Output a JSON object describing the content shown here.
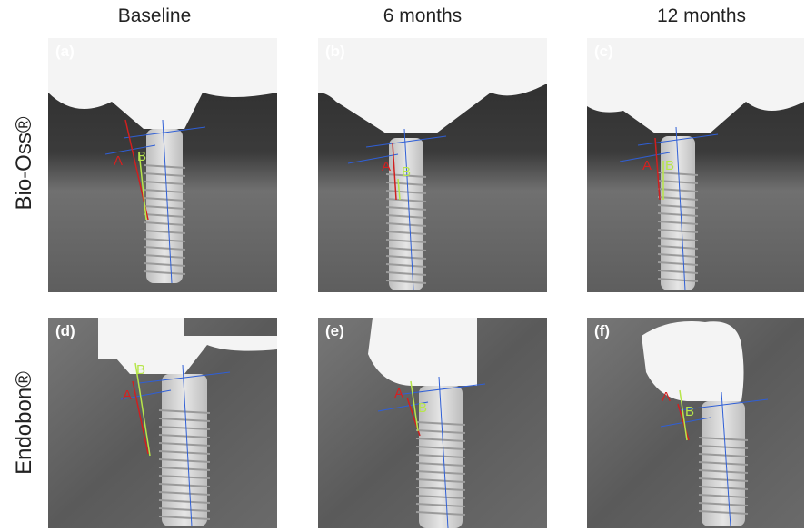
{
  "columns": [
    "Baseline",
    "6 months",
    "12 months"
  ],
  "rows": [
    "Bio-Oss®",
    "Endobon®"
  ],
  "panels": [
    {
      "label": "(a)",
      "marks": [
        "A",
        "B"
      ]
    },
    {
      "label": "(b)",
      "marks": [
        "A",
        "B"
      ]
    },
    {
      "label": "(c)",
      "marks": [
        "A",
        "B"
      ]
    },
    {
      "label": "(d)",
      "marks": [
        "A",
        "B"
      ]
    },
    {
      "label": "(e)",
      "marks": [
        "A",
        "B"
      ]
    },
    {
      "label": "(f)",
      "marks": [
        "A",
        "B"
      ]
    }
  ]
}
